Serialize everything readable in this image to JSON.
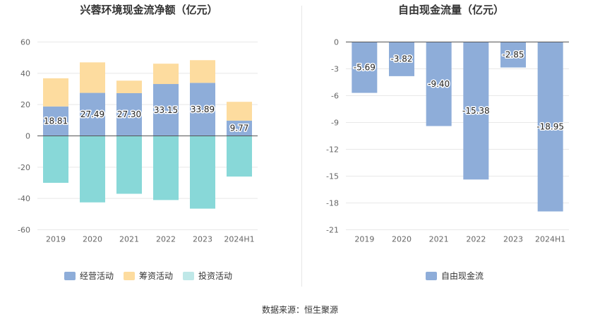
{
  "chart_data": [
    {
      "type": "bar",
      "stacked": true,
      "title": "兴蓉环境现金流净额（亿元）",
      "categories": [
        "2019",
        "2020",
        "2021",
        "2022",
        "2023",
        "2024H1"
      ],
      "ylim": [
        -60,
        60
      ],
      "yticks": [
        60,
        40,
        20,
        0,
        -20,
        -40,
        -60
      ],
      "grid": true,
      "legend_position": "bottom",
      "series": [
        {
          "name": "经营活动",
          "color": "#8eadd9",
          "values": [
            18.81,
            27.49,
            27.3,
            33.15,
            33.89,
            9.77
          ],
          "labels": [
            "18.81",
            "27.49",
            "27.30",
            "33.15",
            "33.89",
            "9.77"
          ]
        },
        {
          "name": "筹资活动",
          "color": "#fddc9f",
          "values": [
            18.0,
            19.5,
            8.0,
            13.0,
            14.5,
            12.0
          ]
        },
        {
          "name": "投资活动",
          "color": "#88d8d8",
          "values": [
            -30.0,
            -42.5,
            -37.0,
            -41.0,
            -46.5,
            -26.0
          ]
        }
      ]
    },
    {
      "type": "bar",
      "title": "自由现金流量（亿元）",
      "categories": [
        "2019",
        "2020",
        "2021",
        "2022",
        "2023",
        "2024H1"
      ],
      "ylim": [
        -21,
        0
      ],
      "yticks": [
        0,
        -3,
        -6,
        -9,
        -12,
        -15,
        -18,
        -21
      ],
      "grid": true,
      "legend_position": "bottom",
      "series": [
        {
          "name": "自由现金流",
          "color": "#8eadd9",
          "values": [
            -5.69,
            -3.82,
            -9.4,
            -15.38,
            -2.85,
            -18.95
          ],
          "labels": [
            "-5.69",
            "-3.82",
            "-9.40",
            "-15.38",
            "-2.85",
            "-18.95"
          ]
        }
      ]
    }
  ],
  "legends": {
    "left": [
      {
        "label": "经营活动",
        "color": "#8eadd9"
      },
      {
        "label": "筹资活动",
        "color": "#fddc9f"
      },
      {
        "label": "投资活动",
        "color": "#bfe8e8"
      }
    ],
    "right": [
      {
        "label": "自由现金流",
        "color": "#8eadd9"
      }
    ]
  },
  "source_text": "数据来源：恒生聚源"
}
